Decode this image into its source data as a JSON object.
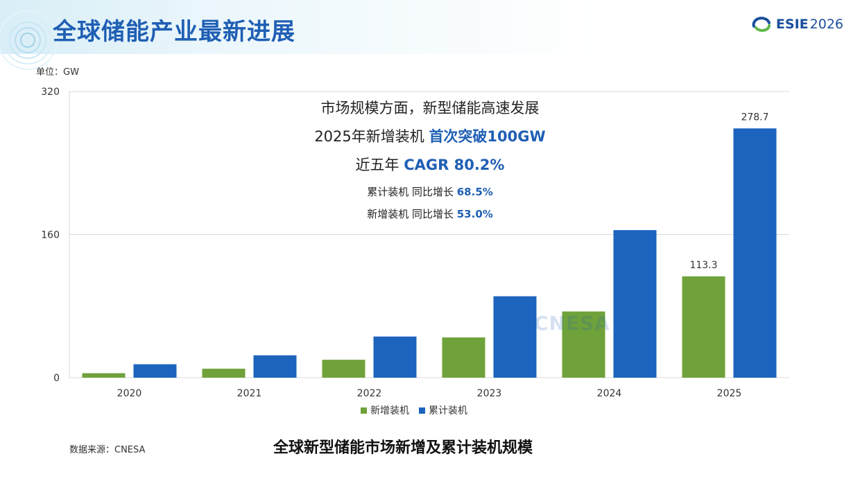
{
  "page": {
    "title": "全球储能产业最新进展",
    "unit_label": "单位：GW",
    "source": "数据来源：CNESA",
    "chart_title": "全球新型储能市场新增及累计装机规模"
  },
  "logo": {
    "name": "ESIE",
    "year": "2026",
    "icon": "esie-logo-icon"
  },
  "callout": {
    "line1": "市场规模方面，新型储能高速发展",
    "line2_prefix": "2025年新增装机 ",
    "line2_highlight": "首次突破100GW",
    "line3_prefix": "近五年 ",
    "line3_highlight": "CAGR 80.2%",
    "line4_prefix": "累计装机 同比增长 ",
    "line4_highlight": "68.5%",
    "line5_prefix": "新增装机 同比增长 ",
    "line5_highlight": "53.0%"
  },
  "watermark": {
    "text": "CNESA"
  },
  "colors": {
    "new_series": "#6fa23a",
    "cumulative_series": "#1c64be",
    "accent": "#1f5fb4",
    "grid": "#d9d9d9"
  },
  "chart_data": {
    "type": "bar",
    "categories": [
      "2020",
      "2021",
      "2022",
      "2023",
      "2024",
      "2025"
    ],
    "series": [
      {
        "name": "新增装机",
        "values": [
          5,
          10,
          20,
          45,
          74,
          113.3
        ]
      },
      {
        "name": "累计装机",
        "values": [
          15,
          25,
          46,
          91,
          165,
          278.7
        ]
      }
    ],
    "data_labels": [
      {
        "series": 0,
        "index": 5,
        "text": "113.3"
      },
      {
        "series": 1,
        "index": 5,
        "text": "278.7"
      }
    ],
    "y_ticks": [
      0,
      160,
      320
    ],
    "ylim": [
      0,
      320
    ],
    "grid": true,
    "legend_position": "bottom"
  }
}
